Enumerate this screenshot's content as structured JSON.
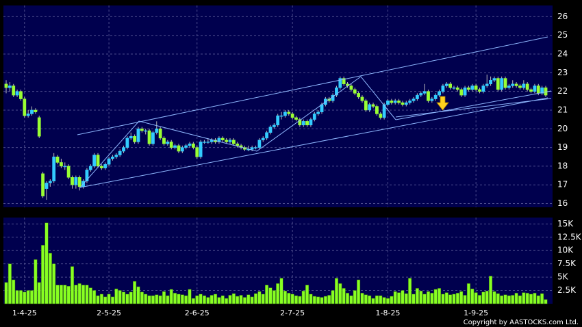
{
  "chart_data": [
    {
      "type": "candlestick",
      "up_color": "#33ccff",
      "down_color": "#99ff33",
      "grid": true,
      "ylim": [
        15.8,
        26.6
      ],
      "yticks": [
        16,
        17,
        18,
        19,
        20,
        21,
        22,
        23,
        24,
        25,
        26
      ],
      "ohlc": [
        [
          22.4,
          22.6,
          21.9,
          22.2
        ],
        [
          22.2,
          22.5,
          22.0,
          22.3
        ],
        [
          22.3,
          22.4,
          21.7,
          21.8
        ],
        [
          21.8,
          22.1,
          21.7,
          22.0
        ],
        [
          22.0,
          22.1,
          21.5,
          21.6
        ],
        [
          21.6,
          21.7,
          20.6,
          20.7
        ],
        [
          20.7,
          21.0,
          20.6,
          20.8
        ],
        [
          20.8,
          21.2,
          20.7,
          21.0
        ],
        [
          21.0,
          21.1,
          20.8,
          20.9
        ],
        [
          20.6,
          20.7,
          19.5,
          19.6
        ],
        [
          17.6,
          17.7,
          16.3,
          16.4
        ],
        [
          16.8,
          17.2,
          16.2,
          17.1
        ],
        [
          17.1,
          17.3,
          16.9,
          17.2
        ],
        [
          17.2,
          18.7,
          17.1,
          18.5
        ],
        [
          18.5,
          18.6,
          18.1,
          18.2
        ],
        [
          18.2,
          18.4,
          17.9,
          18.0
        ],
        [
          18.0,
          18.2,
          17.8,
          18.0
        ],
        [
          18.0,
          18.1,
          17.3,
          17.4
        ],
        [
          17.4,
          17.5,
          16.8,
          17.0
        ],
        [
          17.0,
          17.5,
          16.8,
          17.4
        ],
        [
          17.4,
          17.5,
          16.7,
          16.9
        ],
        [
          16.9,
          17.3,
          16.8,
          17.2
        ],
        [
          17.2,
          17.9,
          17.1,
          17.8
        ],
        [
          17.8,
          18.1,
          17.7,
          18.0
        ],
        [
          18.0,
          18.7,
          17.9,
          18.6
        ],
        [
          18.6,
          18.7,
          17.9,
          18.0
        ],
        [
          18.0,
          18.1,
          17.8,
          17.9
        ],
        [
          17.9,
          18.2,
          17.8,
          18.1
        ],
        [
          18.1,
          18.5,
          18.0,
          18.4
        ],
        [
          18.4,
          18.6,
          18.3,
          18.5
        ],
        [
          18.5,
          18.7,
          18.4,
          18.6
        ],
        [
          18.6,
          18.9,
          18.5,
          18.8
        ],
        [
          18.8,
          19.1,
          18.7,
          19.0
        ],
        [
          19.0,
          19.6,
          18.9,
          19.5
        ],
        [
          19.5,
          19.8,
          19.4,
          19.6
        ],
        [
          19.6,
          19.7,
          19.2,
          19.3
        ],
        [
          19.3,
          20.1,
          19.2,
          20.0
        ],
        [
          20.0,
          20.1,
          19.8,
          19.9
        ],
        [
          19.9,
          20.0,
          19.7,
          19.9
        ],
        [
          19.9,
          20.0,
          19.1,
          19.2
        ],
        [
          19.2,
          19.9,
          19.1,
          19.8
        ],
        [
          19.8,
          20.4,
          19.7,
          20.0
        ],
        [
          20.0,
          20.1,
          19.4,
          19.5
        ],
        [
          19.5,
          19.6,
          19.1,
          19.2
        ],
        [
          19.2,
          19.4,
          19.1,
          19.3
        ],
        [
          19.3,
          19.4,
          18.9,
          19.0
        ],
        [
          19.0,
          19.2,
          18.9,
          19.1
        ],
        [
          19.1,
          19.2,
          18.7,
          18.8
        ],
        [
          18.8,
          19.1,
          18.7,
          19.0
        ],
        [
          19.0,
          19.2,
          18.9,
          19.1
        ],
        [
          19.1,
          19.3,
          19.0,
          19.2
        ],
        [
          19.2,
          19.3,
          18.9,
          19.0
        ],
        [
          19.0,
          19.1,
          18.4,
          18.5
        ],
        [
          18.5,
          19.4,
          18.4,
          19.3
        ],
        [
          19.3,
          19.4,
          19.2,
          19.3
        ],
        [
          19.3,
          19.5,
          19.2,
          19.3
        ],
        [
          19.3,
          19.5,
          19.2,
          19.4
        ],
        [
          19.4,
          19.5,
          19.2,
          19.3
        ],
        [
          19.3,
          19.6,
          19.2,
          19.5
        ],
        [
          19.5,
          19.6,
          19.3,
          19.4
        ],
        [
          19.4,
          19.5,
          19.2,
          19.3
        ],
        [
          19.3,
          19.5,
          19.2,
          19.4
        ],
        [
          19.4,
          19.5,
          19.1,
          19.2
        ],
        [
          19.2,
          19.3,
          19.0,
          19.1
        ],
        [
          19.1,
          19.2,
          18.9,
          19.0
        ],
        [
          19.0,
          19.1,
          18.8,
          18.9
        ],
        [
          18.9,
          19.1,
          18.8,
          18.9
        ],
        [
          18.9,
          19.1,
          18.8,
          19.0
        ],
        [
          19.0,
          19.1,
          18.9,
          19.0
        ],
        [
          19.0,
          19.5,
          18.9,
          19.4
        ],
        [
          19.4,
          19.6,
          19.3,
          19.5
        ],
        [
          19.5,
          19.9,
          19.4,
          19.8
        ],
        [
          19.8,
          20.2,
          19.7,
          20.1
        ],
        [
          20.1,
          20.3,
          20.0,
          20.2
        ],
        [
          20.2,
          20.8,
          20.1,
          20.7
        ],
        [
          20.7,
          20.9,
          20.5,
          20.7
        ],
        [
          20.7,
          21.0,
          20.6,
          20.9
        ],
        [
          20.9,
          21.0,
          20.7,
          20.8
        ],
        [
          20.8,
          20.9,
          20.5,
          20.6
        ],
        [
          20.6,
          20.7,
          20.4,
          20.5
        ],
        [
          20.5,
          20.6,
          20.1,
          20.2
        ],
        [
          20.2,
          20.5,
          20.1,
          20.4
        ],
        [
          20.4,
          20.5,
          20.1,
          20.2
        ],
        [
          20.2,
          20.6,
          20.1,
          20.5
        ],
        [
          20.5,
          20.9,
          20.4,
          20.8
        ],
        [
          20.8,
          21.0,
          20.7,
          20.9
        ],
        [
          20.9,
          21.4,
          20.8,
          21.3
        ],
        [
          21.3,
          21.7,
          21.2,
          21.6
        ],
        [
          21.6,
          21.7,
          21.4,
          21.5
        ],
        [
          21.5,
          21.9,
          21.4,
          21.8
        ],
        [
          21.8,
          22.3,
          21.7,
          22.2
        ],
        [
          22.2,
          22.8,
          22.1,
          22.7
        ],
        [
          22.7,
          22.8,
          22.3,
          22.4
        ],
        [
          22.4,
          22.5,
          22.2,
          22.3
        ],
        [
          22.3,
          22.4,
          22.0,
          22.1
        ],
        [
          22.1,
          22.2,
          21.8,
          21.9
        ],
        [
          21.9,
          22.0,
          21.6,
          21.7
        ],
        [
          21.7,
          21.8,
          21.4,
          21.5
        ],
        [
          21.5,
          21.6,
          20.9,
          21.0
        ],
        [
          21.0,
          21.4,
          20.9,
          21.3
        ],
        [
          21.3,
          21.4,
          21.1,
          21.2
        ],
        [
          21.2,
          21.3,
          20.7,
          20.8
        ],
        [
          20.8,
          20.9,
          20.5,
          20.6
        ],
        [
          20.6,
          21.4,
          20.5,
          21.3
        ],
        [
          21.3,
          21.6,
          21.2,
          21.5
        ],
        [
          21.5,
          21.6,
          21.3,
          21.4
        ],
        [
          21.4,
          21.6,
          21.3,
          21.5
        ],
        [
          21.5,
          21.6,
          21.3,
          21.4
        ],
        [
          21.4,
          21.5,
          21.2,
          21.3
        ],
        [
          21.3,
          21.5,
          21.2,
          21.4
        ],
        [
          21.4,
          21.6,
          21.3,
          21.5
        ],
        [
          21.5,
          21.7,
          21.4,
          21.6
        ],
        [
          21.6,
          21.9,
          21.5,
          21.8
        ],
        [
          21.8,
          22.0,
          21.7,
          21.9
        ],
        [
          21.9,
          22.4,
          21.8,
          22.0
        ],
        [
          22.0,
          22.1,
          21.4,
          21.5
        ],
        [
          21.5,
          21.7,
          21.4,
          21.6
        ],
        [
          21.6,
          21.9,
          21.5,
          21.8
        ],
        [
          21.8,
          22.1,
          21.7,
          22.0
        ],
        [
          22.0,
          22.4,
          21.9,
          22.3
        ],
        [
          22.3,
          22.5,
          22.2,
          22.4
        ],
        [
          22.4,
          22.5,
          22.1,
          22.2
        ],
        [
          22.2,
          22.3,
          22.1,
          22.2
        ],
        [
          22.2,
          22.3,
          22.0,
          22.1
        ],
        [
          22.1,
          22.2,
          21.7,
          21.8
        ],
        [
          21.8,
          22.3,
          21.7,
          22.2
        ],
        [
          22.2,
          22.3,
          22.0,
          22.1
        ],
        [
          22.1,
          22.4,
          22.0,
          22.3
        ],
        [
          22.3,
          22.4,
          22.0,
          22.1
        ],
        [
          22.1,
          22.2,
          21.9,
          22.0
        ],
        [
          22.0,
          22.4,
          21.9,
          22.3
        ],
        [
          22.3,
          22.9,
          22.2,
          22.4
        ],
        [
          22.4,
          22.8,
          22.3,
          22.6
        ],
        [
          22.6,
          22.8,
          22.5,
          22.7
        ],
        [
          22.7,
          22.8,
          22.0,
          22.1
        ],
        [
          22.1,
          22.8,
          22.0,
          22.7
        ],
        [
          22.7,
          22.8,
          22.1,
          22.2
        ],
        [
          22.2,
          22.4,
          22.1,
          22.3
        ],
        [
          22.3,
          22.6,
          22.2,
          22.4
        ],
        [
          22.4,
          22.5,
          22.2,
          22.3
        ],
        [
          22.3,
          22.4,
          22.1,
          22.2
        ],
        [
          22.2,
          22.6,
          22.1,
          22.4
        ],
        [
          22.4,
          22.5,
          22.0,
          22.1
        ],
        [
          22.1,
          22.2,
          21.9,
          22.0
        ],
        [
          22.0,
          22.4,
          21.9,
          22.3
        ],
        [
          22.3,
          22.4,
          21.8,
          21.9
        ],
        [
          21.9,
          22.3,
          21.8,
          22.2
        ],
        [
          22.2,
          22.3,
          21.7,
          21.8
        ]
      ]
    },
    {
      "type": "bar",
      "color": "#88ff22",
      "grid": true,
      "ylim": [
        0,
        16200
      ],
      "yticks": [
        {
          "value": 2500,
          "label": "2.5K"
        },
        {
          "value": 5000,
          "label": "5K"
        },
        {
          "value": 7500,
          "label": "7.5K"
        },
        {
          "value": 10000,
          "label": "10K"
        },
        {
          "value": 12500,
          "label": "12.5K"
        },
        {
          "value": 15000,
          "label": "15K"
        }
      ],
      "categories": [
        null,
        null,
        null,
        null,
        null,
        "1-4-25",
        null,
        null,
        null,
        null,
        null,
        null,
        null,
        null,
        null,
        null,
        null,
        null,
        null,
        null,
        null,
        null,
        null,
        null,
        null,
        null,
        null,
        null,
        "2-5-25",
        null,
        null,
        null,
        null,
        null,
        null,
        null,
        null,
        null,
        null,
        null,
        null,
        null,
        null,
        null,
        null,
        null,
        null,
        null,
        null,
        null,
        null,
        null,
        "2-6-25",
        null,
        null,
        null,
        null,
        null,
        null,
        null,
        null,
        null,
        null,
        null,
        null,
        null,
        null,
        null,
        null,
        null,
        null,
        null,
        null,
        null,
        null,
        null,
        null,
        null,
        "2-7-25",
        null,
        null,
        null,
        null,
        null,
        null,
        null,
        null,
        null,
        null,
        null,
        null,
        null,
        null,
        null,
        null,
        null,
        null,
        null,
        null,
        null,
        null,
        null,
        null,
        null,
        "1-8-25",
        null,
        null,
        null,
        null,
        null,
        null,
        null,
        null,
        null,
        null,
        null,
        null,
        null,
        null,
        null,
        null,
        null,
        null,
        null,
        null,
        null,
        null,
        null,
        "1-9-25",
        null,
        null,
        null,
        null,
        null,
        null,
        null,
        null,
        null,
        null,
        null,
        null,
        null,
        null,
        null,
        null,
        null,
        null,
        null
      ],
      "values": [
        4000,
        7500,
        4500,
        2500,
        2500,
        2200,
        2500,
        2500,
        8300,
        4000,
        11000,
        15200,
        9500,
        7500,
        3500,
        3500,
        3500,
        3300,
        7000,
        3500,
        3800,
        3500,
        3500,
        3000,
        2500,
        1500,
        1800,
        1300,
        1800,
        1300,
        2800,
        2500,
        2200,
        1800,
        2200,
        4200,
        3200,
        2200,
        1800,
        1500,
        1500,
        1700,
        1500,
        2300,
        1500,
        2700,
        2000,
        1800,
        1700,
        1500,
        2700,
        1000,
        1500,
        1800,
        1500,
        1200,
        1600,
        1800,
        1200,
        1500,
        1000,
        1600,
        1900,
        1400,
        1600,
        1200,
        1700,
        1300,
        1900,
        2300,
        1800,
        3500,
        3000,
        2500,
        3800,
        4800,
        2400,
        2000,
        1800,
        1500,
        1400,
        2400,
        3500,
        1800,
        1400,
        1300,
        1200,
        1400,
        1600,
        2500,
        4800,
        3800,
        2900,
        2000,
        1500,
        2500,
        4500,
        2000,
        1700,
        1500,
        1000,
        1500,
        1500,
        1200,
        1000,
        1400,
        2300,
        2100,
        2500,
        1900,
        4800,
        1800,
        2900,
        2400,
        1800,
        2300,
        2000,
        2700,
        2900,
        1800,
        2100,
        1700,
        1800,
        2000,
        2300,
        1600,
        3800,
        2800,
        2100,
        1600,
        2200,
        2400,
        5200,
        2300,
        1900,
        1500,
        1700,
        1500,
        1600,
        2000,
        1500,
        2100,
        2000,
        1800,
        2000,
        1500,
        1900,
        800
      ]
    }
  ],
  "copyright": "Copyright by AASTOCKS.com Ltd."
}
